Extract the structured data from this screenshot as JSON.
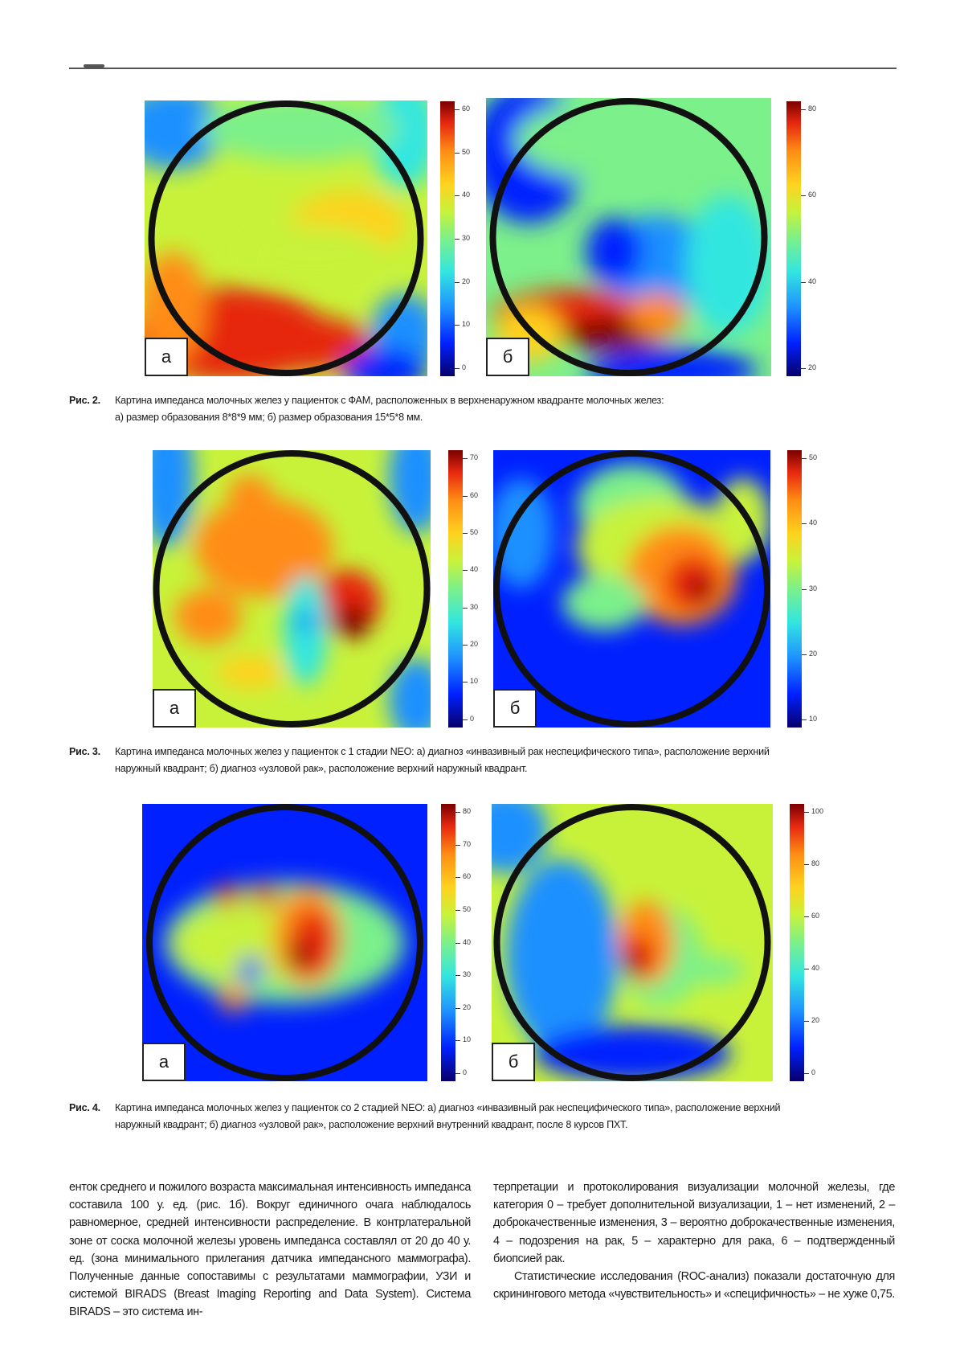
{
  "figures": {
    "fig2": {
      "panel_a_label": "а",
      "panel_b_label": "б",
      "colorbar_a_ticks": [
        "60",
        "50",
        "40",
        "30",
        "20",
        "10",
        "0"
      ],
      "colorbar_b_ticks": [
        "80",
        "60",
        "40",
        "20"
      ],
      "caption_number": "Рис. 2.",
      "caption_line1": "Картина импеданса молочных желез у пациенток с ФАМ, расположенных в верхненаружном квадранте молочных желез:",
      "caption_line2": "а) размер образования 8*8*9 мм; б) размер образования 15*5*8 мм."
    },
    "fig3": {
      "panel_a_label": "а",
      "panel_b_label": "б",
      "colorbar_a_ticks": [
        "70",
        "60",
        "50",
        "40",
        "30",
        "20",
        "10",
        "0"
      ],
      "colorbar_b_ticks": [
        "50",
        "40",
        "30",
        "20",
        "10"
      ],
      "caption_number": "Рис. 3.",
      "caption_line1": "Картина импеданса молочных желез у пациенток с 1 стадии NEO: а) диагноз «инвазивный рак неспецифического типа», расположение верхний",
      "caption_line2": "наружный квадрант; б) диагноз «узловой рак», расположение верхний наружный квадрант."
    },
    "fig4": {
      "panel_a_label": "а",
      "panel_b_label": "б",
      "colorbar_a_ticks": [
        "80",
        "70",
        "60",
        "50",
        "40",
        "30",
        "20",
        "10",
        "0"
      ],
      "colorbar_b_ticks": [
        "100",
        "80",
        "60",
        "40",
        "20",
        "0"
      ],
      "caption_number": "Рис. 4.",
      "caption_line1": "Картина импеданса молочных желез у пациенток со 2 стадией NEO: а) диагноз «инвазивный рак неспецифического типа», расположение верхний",
      "caption_line2": "наружный квадрант; б) диагноз «узловой рак», расположение верхний внутренний квадрант, после 8 курсов ПХТ."
    }
  },
  "body": {
    "left_column": "енток среднего и пожилого возраста максимальная интенсивность импеданса составила 100 у. ед. (рис. 1б). Вокруг единичного очага наблюдалось равномерное, средней интенсивности распределение. В контрлатеральной зоне от соска молочной железы уровень импеданса составлял от 20 до 40 у. ед. (зона минимального прилегания датчика импедансного маммографа). Полученные данные сопоставимы с результатами маммографии, УЗИ и системой BIRADS (Breast Imaging Reporting and Data System). Система BIRADS – это система ин-",
    "right_column_p1": "терпретации и протоколирования визуализации молочной железы, где категория 0 – требует дополнительной визуализации, 1 – нет изменений, 2 – доброкачественные изменения, 3 – вероятно доброкачественные изменения, 4 – подозрения на рак, 5 – характерно для рака, 6 – подтвержденный биопсией рак.",
    "right_column_p2": "Статистические исследования (ROC-анализ) показали достаточную для скринингового метода «чувствительность» и «специфичность» – не хуже 0,75."
  },
  "colors": {
    "colormap": [
      "#08006b",
      "#0020ff",
      "#1e90ff",
      "#33e6e0",
      "#7cf08a",
      "#c8f23a",
      "#ffd21f",
      "#ff8c14",
      "#e62810",
      "#7a0000"
    ],
    "ring": "#111111"
  }
}
